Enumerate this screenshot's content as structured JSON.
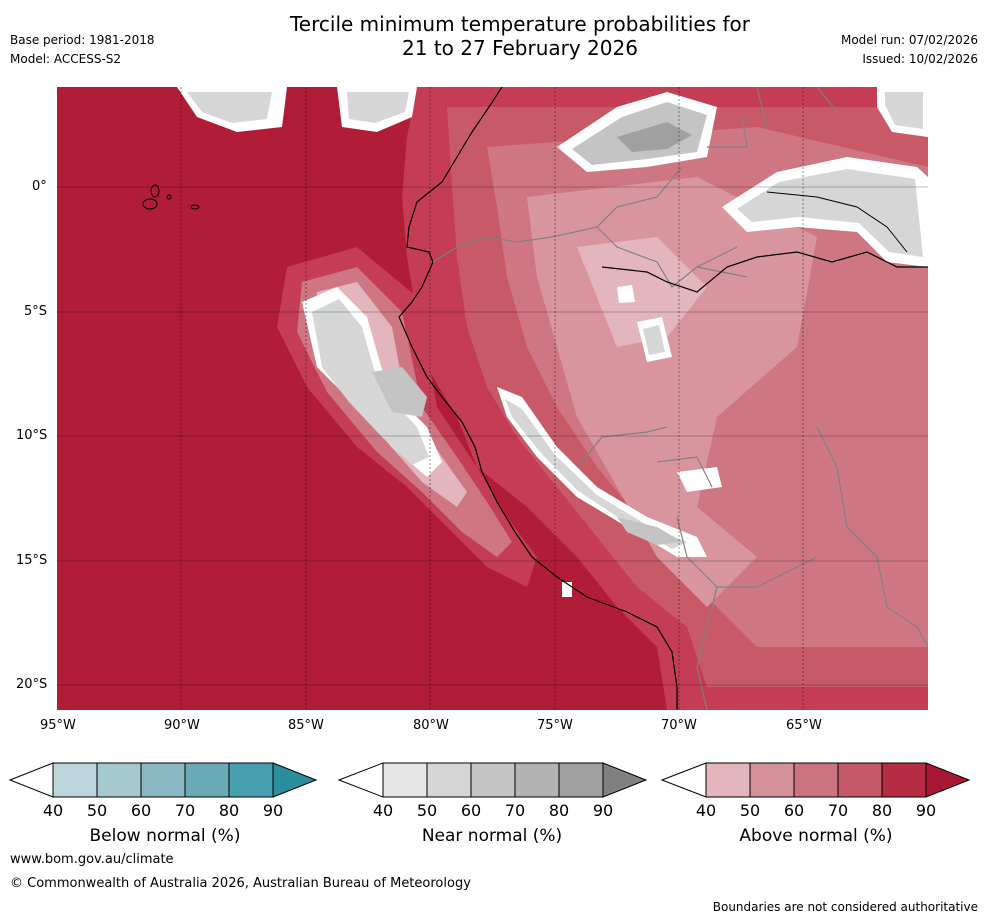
{
  "header": {
    "title_line1": "Tercile minimum temperature probabilities for",
    "title_line2": "21 to 27 February 2026",
    "base_period": "Base period: 1981-2018",
    "model": "Model: ACCESS-S2",
    "model_run": "Model run: 07/02/2026",
    "issued": "Issued: 10/02/2026"
  },
  "map": {
    "lon_labels": [
      "95°W",
      "90°W",
      "85°W",
      "80°W",
      "75°W",
      "70°W",
      "65°W"
    ],
    "lat_labels": [
      "0°",
      "5°S",
      "10°S",
      "15°S",
      "20°S"
    ],
    "colors": {
      "above_90": "#b11c37",
      "above_80": "#c43d54",
      "above_70": "#c85a68",
      "above_60": "#cf7683",
      "above_50": "#d9959e",
      "above_40": "#e2b6bc",
      "near_40": "#e6e6e6",
      "near_50": "#d6d6d6",
      "near_60": "#c4c4c4",
      "near_70": "#b3b3b3",
      "near_80": "#a0a0a0",
      "near_90": "#888888"
    }
  },
  "colorbars": {
    "ticks": [
      "40",
      "50",
      "60",
      "70",
      "80",
      "90"
    ],
    "below": {
      "label": "Below normal (%)",
      "colors": [
        "#ffffff",
        "#bcd5da",
        "#a6c8cf",
        "#8ab8c2",
        "#6aaab5",
        "#48a0af",
        "#2a8e9f"
      ]
    },
    "near": {
      "label": "Near normal (%)",
      "colors": [
        "#ffffff",
        "#e6e6e6",
        "#d6d6d6",
        "#c4c4c4",
        "#b3b3b3",
        "#a0a0a0",
        "#808080"
      ]
    },
    "above": {
      "label": "Above normal (%)",
      "colors": [
        "#ffffff",
        "#e2b6bc",
        "#d59198",
        "#cc7380",
        "#c45a68",
        "#b52c43",
        "#a81835"
      ]
    }
  },
  "footer": {
    "url": "www.bom.gov.au/climate",
    "copyright": "© Commonwealth of Australia 2026, Australian Bureau of Meteorology",
    "disclaimer": "Boundaries are not considered authoritative"
  }
}
